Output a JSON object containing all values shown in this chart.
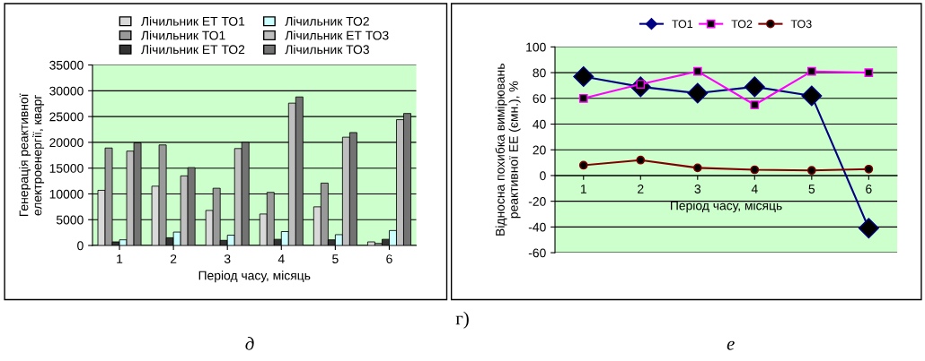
{
  "chart_data": [
    {
      "type": "bar",
      "categories": [
        "1",
        "2",
        "3",
        "4",
        "5",
        "6"
      ],
      "xlabel": "Період часу, місяць",
      "ylabel": "Генерація реактивної\nелектроенергії, кварг",
      "series": [
        {
          "name": "Лічильник ЕТ ТО1",
          "color": "#d9d9d9",
          "values": [
            10700,
            11500,
            6800,
            6100,
            7500,
            700
          ]
        },
        {
          "name": "Лічильник ТО1",
          "color": "#999999",
          "values": [
            18900,
            19500,
            11100,
            10300,
            12100,
            400
          ]
        },
        {
          "name": "Лічильник ЕТ ТО2",
          "color": "#333333",
          "values": [
            700,
            1500,
            1000,
            1200,
            1100,
            1200
          ]
        },
        {
          "name": "Лічильник ТО2",
          "color": "#ccffff",
          "values": [
            1100,
            2600,
            2000,
            2700,
            2100,
            2900
          ]
        },
        {
          "name": "Лічильник ЕТ ТО3",
          "color": "#bfbfbf",
          "values": [
            18300,
            13500,
            18800,
            27600,
            21000,
            24400
          ]
        },
        {
          "name": "Лічильник ТО3",
          "color": "#737373",
          "values": [
            19900,
            15100,
            20000,
            28800,
            21900,
            25600
          ]
        }
      ],
      "ylim": [
        0,
        35000
      ],
      "yticks": [
        0,
        5000,
        10000,
        15000,
        20000,
        25000,
        30000,
        35000
      ],
      "grid": "y",
      "legend": "top",
      "annotations": [
        "г)",
        "д"
      ]
    },
    {
      "type": "line",
      "categories": [
        "1",
        "2",
        "3",
        "4",
        "5",
        "6"
      ],
      "xlabel": "Період часу, місяць",
      "ylabel": "Відносна похибка вимірювань\nреактивної ЕЕ (ємн.), %",
      "series": [
        {
          "name": "ТО1",
          "color": "#000080",
          "marker": "diamond",
          "values": [
            77,
            69,
            64,
            69,
            62,
            -41
          ]
        },
        {
          "name": "ТО2",
          "color": "#ff00ff",
          "marker": "square",
          "values": [
            60,
            71,
            81,
            55,
            81,
            80
          ]
        },
        {
          "name": "ТО3",
          "color": "#800000",
          "marker": "circle",
          "values": [
            8,
            12,
            6,
            4.5,
            4,
            5
          ]
        }
      ],
      "ylim": [
        -60,
        100
      ],
      "yticks": [
        -60,
        -40,
        -20,
        0,
        20,
        40,
        60,
        80,
        100
      ],
      "grid": "y",
      "legend": "top",
      "annotations": [
        "е"
      ]
    }
  ]
}
